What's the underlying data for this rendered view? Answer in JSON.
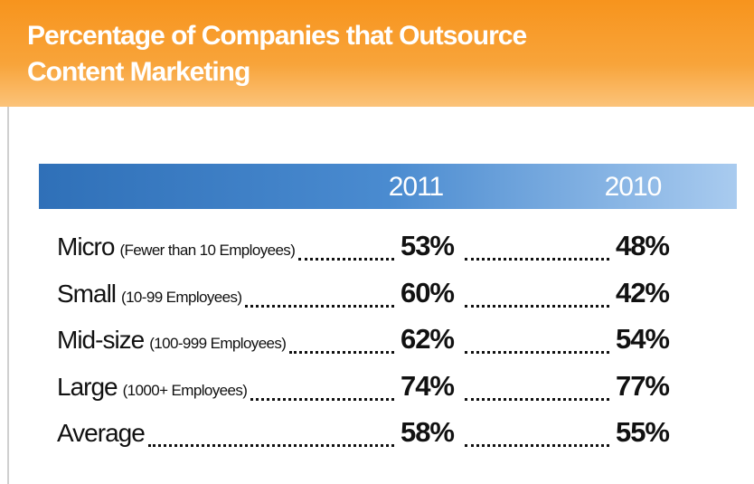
{
  "title": "Percentage of Companies that Outsource Content Marketing",
  "table": {
    "columns": [
      "2011",
      "2010"
    ],
    "rows": [
      {
        "label": "Micro",
        "note": "(Fewer than 10 Employees)",
        "values": [
          "53%",
          "48%"
        ]
      },
      {
        "label": "Small",
        "note": "(10-99 Employees)",
        "values": [
          "60%",
          "42%"
        ]
      },
      {
        "label": "Mid-size",
        "note": "(100-999 Employees)",
        "values": [
          "62%",
          "54%"
        ]
      },
      {
        "label": "Large",
        "note": "(1000+ Employees)",
        "values": [
          "74%",
          "77%"
        ]
      },
      {
        "label": "Average",
        "values": [
          "58%",
          "55%"
        ]
      }
    ]
  }
}
